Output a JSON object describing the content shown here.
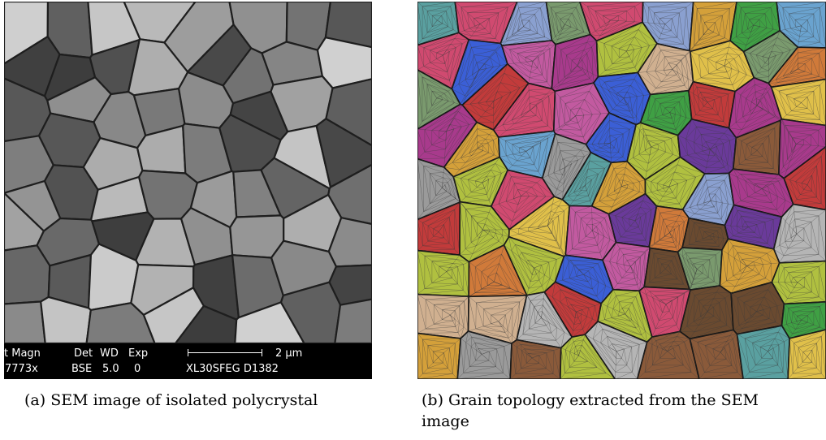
{
  "figure": {
    "panel_a": {
      "sem_bar": {
        "magn_label": "t Magn",
        "magn_value": "7773x",
        "det_label": "Det",
        "det_value": "BSE",
        "wd_label": "WD",
        "wd_value": "5.0",
        "exp_label": "Exp",
        "exp_value": "0",
        "scale_label": "2 µm",
        "instrument": "XL30SFEG D1382"
      },
      "caption": "(a) SEM image of isolated polycrystal"
    },
    "panel_b": {
      "caption_line1": "(b) Grain topology extracted from the SEM",
      "caption_line2": "image",
      "grain_colors": [
        "#c23b3b",
        "#7a9a6e",
        "#3b5fd6",
        "#a83a8c",
        "#d4a03a",
        "#6aa3cf",
        "#9a9a9a",
        "#b5b5b5",
        "#3fa044",
        "#8a5a3a",
        "#c25aa0",
        "#e0c04a",
        "#6a3a9a",
        "#b0c040",
        "#5aa0a0",
        "#d07a3a",
        "#8aa0d0",
        "#d0b090",
        "#6a4a30",
        "#d04a70"
      ],
      "mesh_color": "#3a3a3a"
    }
  }
}
